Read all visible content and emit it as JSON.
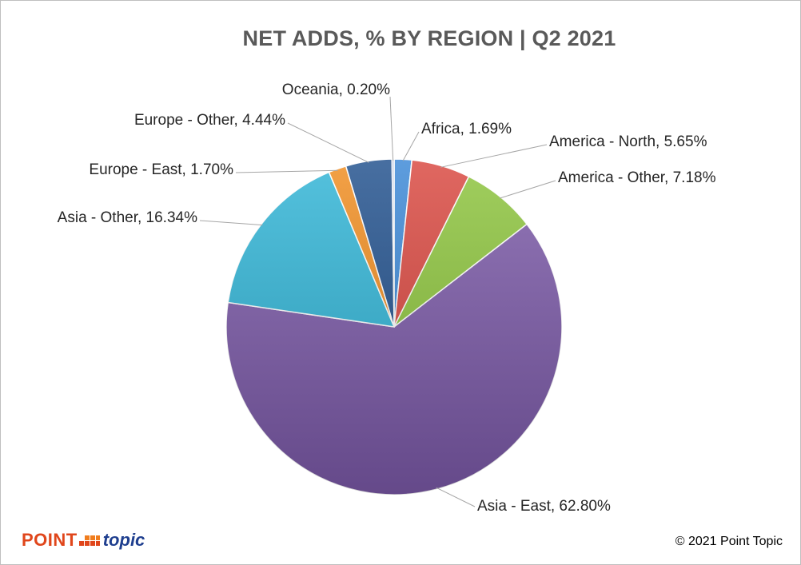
{
  "chart_data": {
    "type": "pie",
    "title": "NET ADDS, % BY REGION | Q2 2021",
    "unit": "%",
    "slices": [
      {
        "label": "Africa",
        "value": 1.69,
        "display": "Africa, 1.69%",
        "color": "#3a87d6"
      },
      {
        "label": "America - North",
        "value": 5.65,
        "display": "America - North, 5.65%",
        "color": "#d9463e"
      },
      {
        "label": "America - Other",
        "value": 7.18,
        "display": "America - Other, 7.18%",
        "color": "#8cc43b"
      },
      {
        "label": "Asia - East",
        "value": 62.8,
        "display": "Asia - East, 62.80%",
        "color": "#7b59a8"
      },
      {
        "label": "Asia - Other",
        "value": 16.34,
        "display": "Asia - Other, 16.34%",
        "color": "#2fb4d6"
      },
      {
        "label": "Europe - East",
        "value": 1.7,
        "display": "Europe - East, 1.70%",
        "color": "#f08c1e"
      },
      {
        "label": "Europe - Other",
        "value": 4.44,
        "display": "Europe - Other, 4.44%",
        "color": "#1f4f8c"
      },
      {
        "label": "Oceania",
        "value": 0.2,
        "display": "Oceania, 0.20%",
        "color": "#9aaed3"
      }
    ],
    "legend": "none",
    "data_labels": "outside with leader lines"
  },
  "footer": {
    "logo_text_1": "POINT",
    "logo_text_2": "topic",
    "copyright": "© 2021 Point Topic"
  },
  "colors": {
    "title": "#595959",
    "logo_orange": "#e0461b",
    "logo_blue": "#1f3f8f"
  }
}
